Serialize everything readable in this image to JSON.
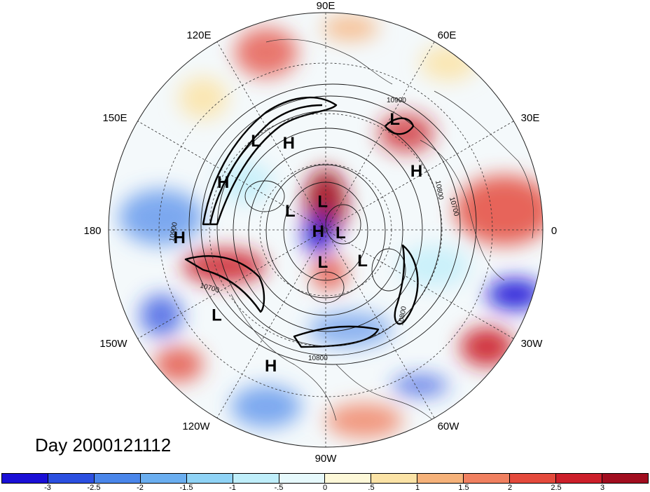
{
  "title": "Day 2000121112",
  "longitude_labels": {
    "lon_90e": "90E",
    "lon_60e": "60E",
    "lon_30e": "30E",
    "lon_0": "0",
    "lon_30w": "30W",
    "lon_60w": "60W",
    "lon_90w": "90W",
    "lon_120w": "120W",
    "lon_150w": "150W",
    "lon_180": "180",
    "lon_150e": "150E",
    "lon_120e": "120E"
  },
  "pressure_centers": [
    {
      "type": "L",
      "lon": 128,
      "lat": 35
    },
    {
      "type": "H",
      "lon": 113,
      "lat": 43
    },
    {
      "type": "L",
      "lon": 58,
      "lat": 28
    },
    {
      "type": "H",
      "lon": 33,
      "lat": 37
    },
    {
      "type": "H",
      "lon": 155,
      "lat": 35
    },
    {
      "type": "H",
      "lon": -177,
      "lat": 22
    },
    {
      "type": "L",
      "lon": 152,
      "lat": 69
    },
    {
      "type": "L",
      "lon": 96,
      "lat": 75
    },
    {
      "type": "H",
      "lon": -170,
      "lat": 86
    },
    {
      "type": "L",
      "lon": -10,
      "lat": 82
    },
    {
      "type": "L",
      "lon": -40,
      "lat": 65
    },
    {
      "type": "L",
      "lon": -95,
      "lat": 73
    },
    {
      "type": "L",
      "lon": -142,
      "lat": 25
    },
    {
      "type": "H",
      "lon": -112,
      "lat": 22
    }
  ],
  "contour_labels": [
    "10900",
    "10800",
    "10700",
    "10900",
    "10700",
    "10800",
    "10800"
  ],
  "colorbar": {
    "colors": [
      "#1a0fd6",
      "#2b4fe0",
      "#4a86ea",
      "#6aaef0",
      "#8fd3f6",
      "#bfeefa",
      "#e6f9fc",
      "#fdf8d8",
      "#fbe3a6",
      "#f6b27a",
      "#f08060",
      "#e44a3c",
      "#cc1f2a",
      "#a10d1f"
    ],
    "tick_labels": [
      "-3",
      "-2.5",
      "-2",
      "-1.5",
      "-1",
      "-.5",
      "0",
      ".5",
      "1",
      "1.5",
      "2",
      "2.5",
      "3"
    ]
  }
}
